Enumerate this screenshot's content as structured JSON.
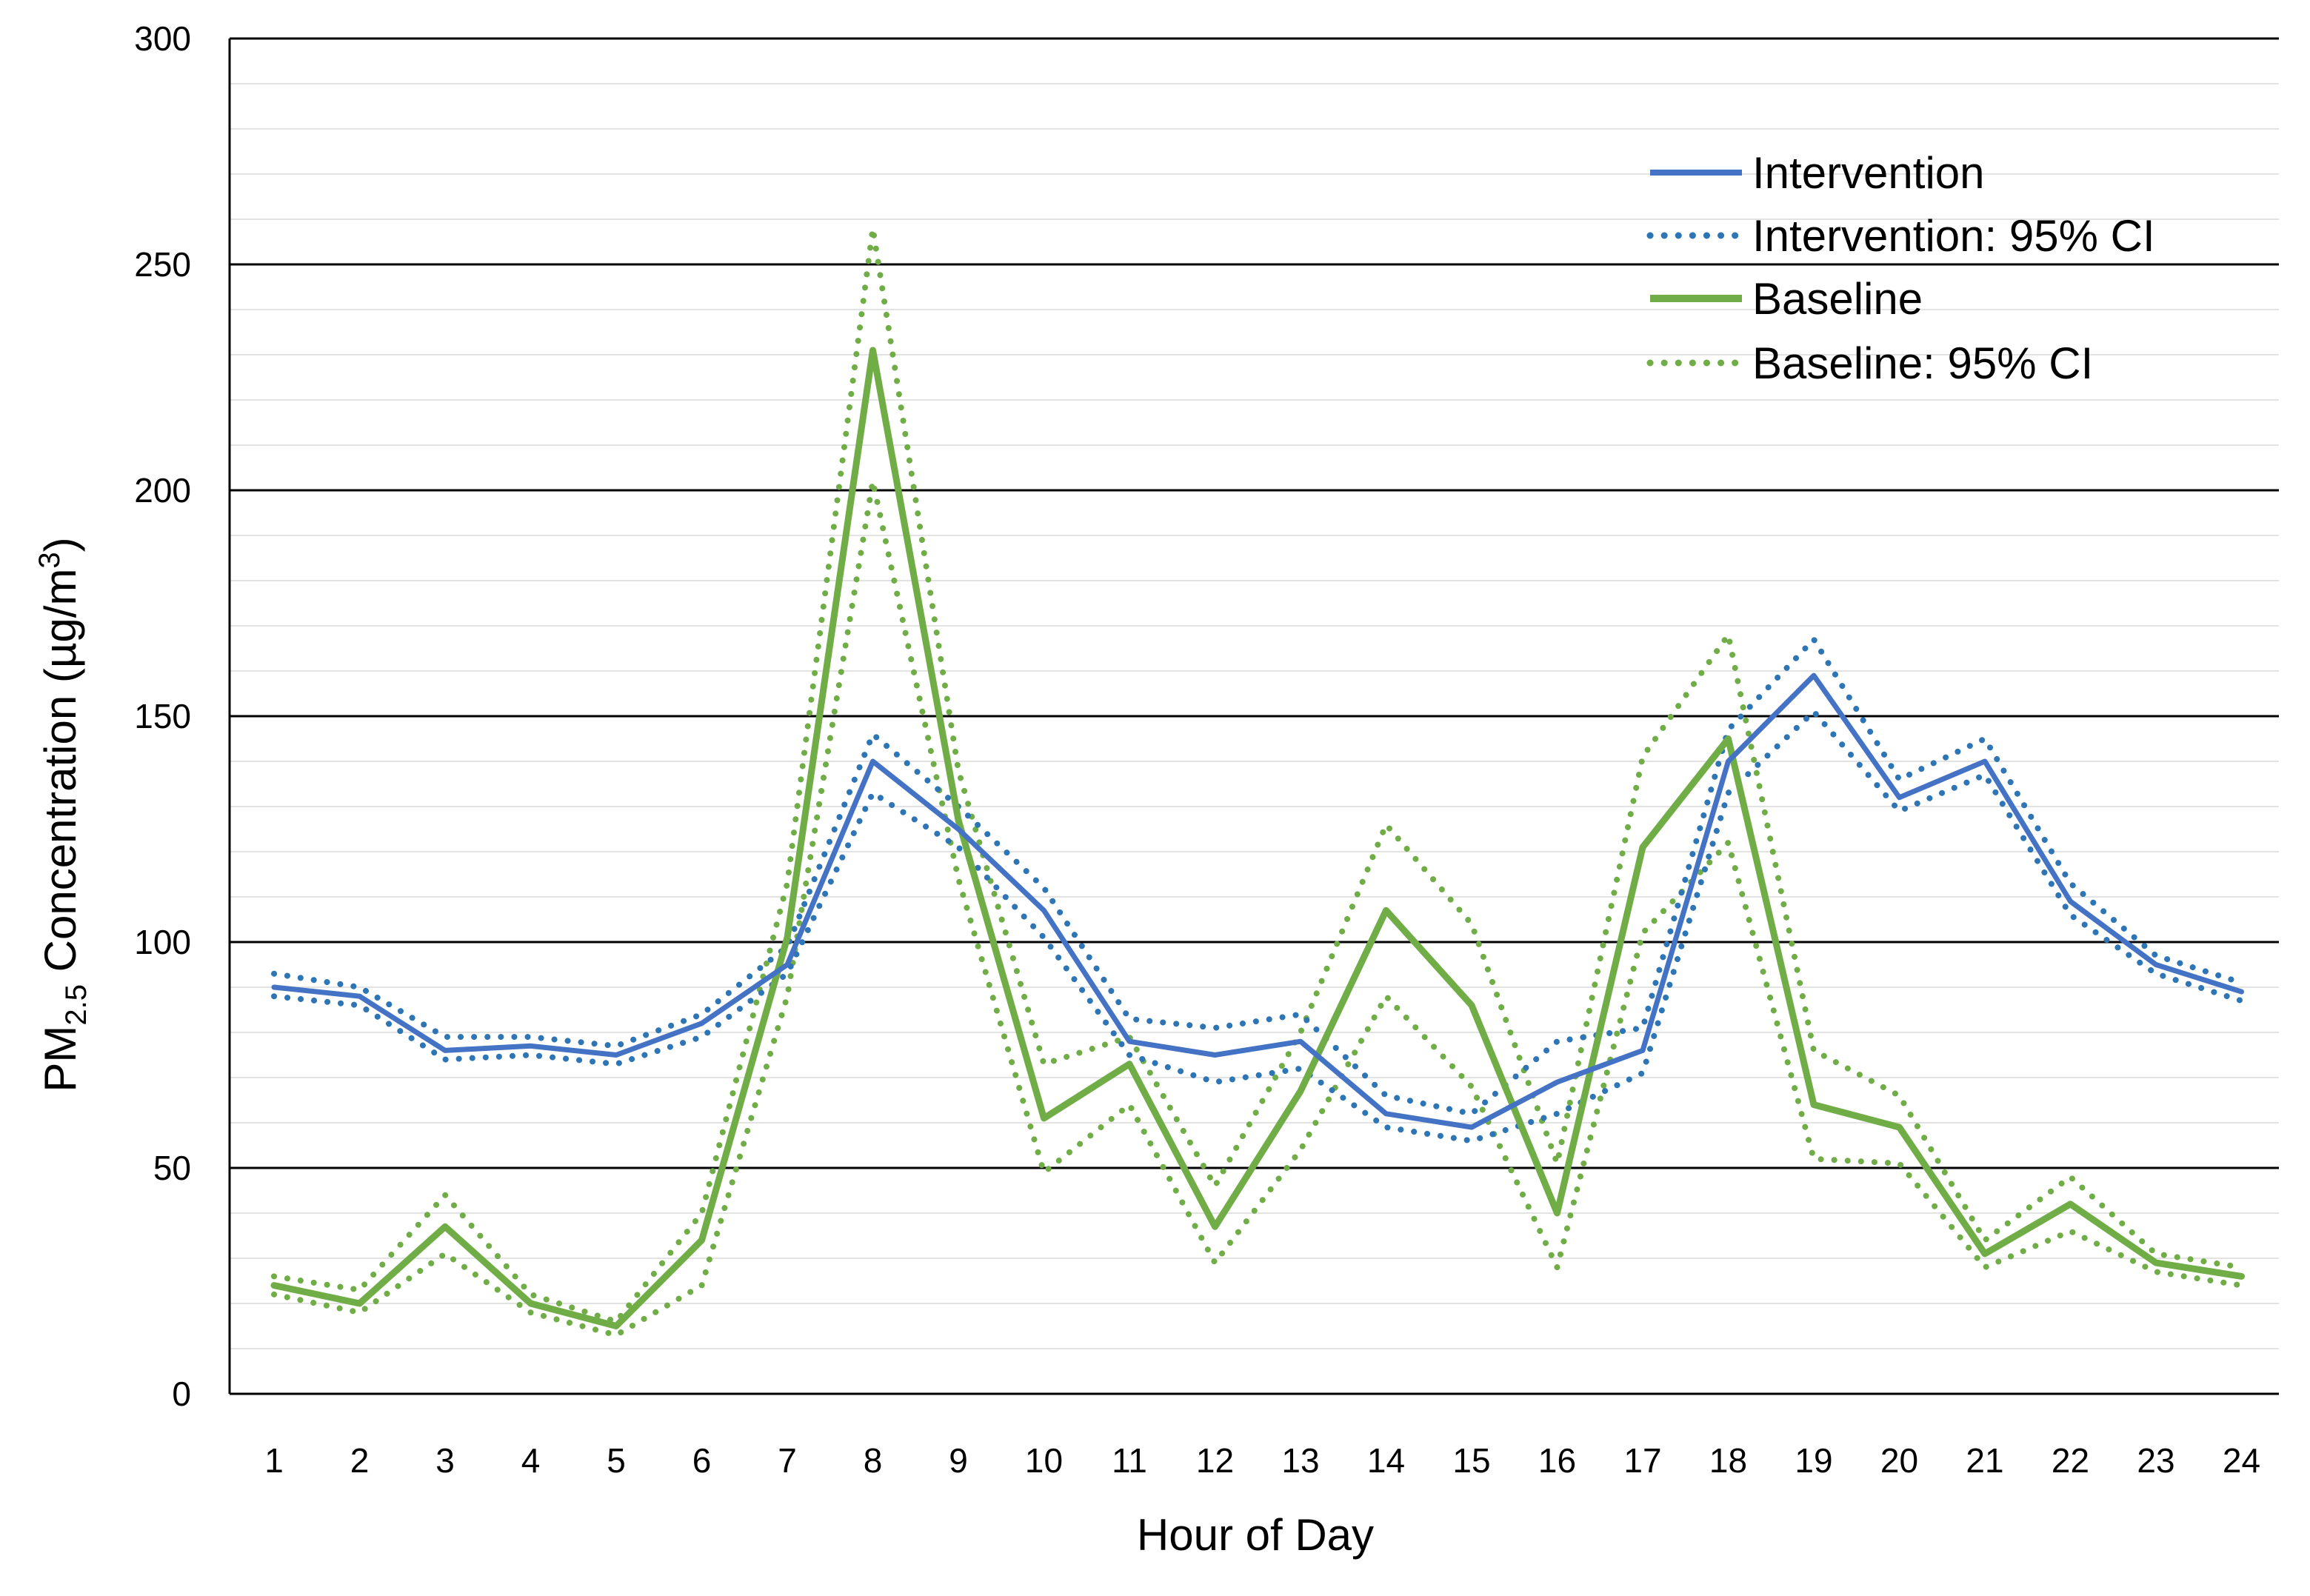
{
  "chart_data": {
    "type": "line",
    "title": "",
    "xlabel": "Hour of Day",
    "ylabel": {
      "prefix": "PM",
      "subscript": "2.5",
      "middle": " Concentration (µg/m",
      "superscript": "3",
      "suffix": ")"
    },
    "x": [
      1,
      2,
      3,
      4,
      5,
      6,
      7,
      8,
      9,
      10,
      11,
      12,
      13,
      14,
      15,
      16,
      17,
      18,
      19,
      20,
      21,
      22,
      23,
      24
    ],
    "ylim": [
      0,
      300
    ],
    "yticks": [
      0,
      50,
      100,
      150,
      200,
      250,
      300
    ],
    "minor_gridlines": true,
    "legend_position": "top-right",
    "colors": {
      "intervention": "#4472C4",
      "intervention_ci": "#2E75B6",
      "baseline": "#70AD47"
    },
    "series": [
      {
        "name": "Intervention",
        "style": "solid",
        "color": "#4472C4",
        "values": [
          90,
          88,
          76,
          77,
          75,
          82,
          95,
          140,
          125,
          107,
          78,
          75,
          78,
          62,
          59,
          69,
          76,
          140,
          159,
          132,
          140,
          109,
          95,
          89
        ]
      },
      {
        "name": "Intervention: 95% CI",
        "style": "dotted",
        "color": "#2E75B6",
        "upper": [
          93,
          90,
          79,
          79,
          77,
          84,
          99,
          146,
          130,
          112,
          83,
          81,
          84,
          66,
          62,
          78,
          81,
          147,
          167,
          136,
          145,
          113,
          97,
          91
        ],
        "lower": [
          88,
          86,
          74,
          75,
          73,
          79,
          93,
          133,
          121,
          101,
          75,
          69,
          72,
          59,
          56,
          62,
          71,
          133,
          151,
          129,
          137,
          106,
          93,
          87
        ]
      },
      {
        "name": "Baseline",
        "style": "solid",
        "color": "#70AD47",
        "values": [
          24,
          20,
          37,
          20,
          15,
          34,
          101,
          231,
          127,
          61,
          73,
          37,
          67,
          107,
          86,
          40,
          121,
          145,
          64,
          59,
          31,
          42,
          29,
          26
        ]
      },
      {
        "name": "Baseline: 95% CI",
        "style": "dotted",
        "color": "#70AD47",
        "upper": [
          26,
          23,
          44,
          22,
          16,
          40,
          113,
          258,
          138,
          73,
          79,
          46,
          80,
          126,
          104,
          51,
          141,
          168,
          76,
          66,
          34,
          48,
          31,
          28
        ],
        "lower": [
          22,
          18,
          31,
          18,
          13,
          24,
          88,
          202,
          114,
          49,
          64,
          29,
          54,
          88,
          68,
          28,
          102,
          122,
          52,
          51,
          28,
          36,
          27,
          24
        ]
      }
    ]
  }
}
